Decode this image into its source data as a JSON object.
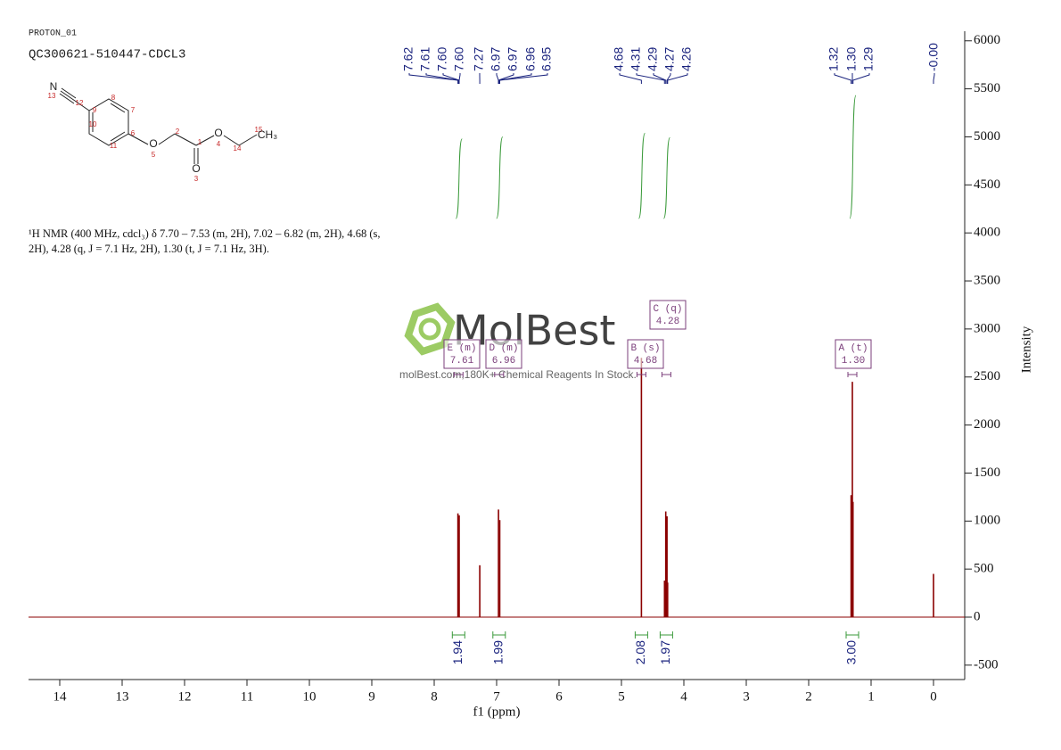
{
  "header": {
    "experiment": "PROTON_01",
    "sample": "QC300621-510447-CDCL3"
  },
  "structure": {
    "atoms": [
      "N",
      "13",
      "12",
      "9",
      "8",
      "7",
      "10",
      "11",
      "6",
      "O",
      "5",
      "2",
      "1",
      "O",
      "3",
      "O",
      "4",
      "14",
      "15",
      "CH₃"
    ]
  },
  "description": "¹H NMR (400 MHz, cdcl₃) δ 7.70 – 7.53 (m, 2H), 7.02 – 6.82 (m, 2H), 4.68 (s, 2H), 4.28 (q, J = 7.1 Hz, 2H), 1.30 (t, J = 7.1 Hz, 3H).",
  "watermark": {
    "brand": "MolBest",
    "tagline": "molBest.com,180K+ Chemical Reagents In Stock."
  },
  "chart_data": {
    "type": "spectrum",
    "x_label": "f1 (ppm)",
    "y_label": "Intensity",
    "xlim": [
      14.5,
      -0.5
    ],
    "xticks": [
      14,
      13,
      12,
      11,
      10,
      9,
      8,
      7,
      6,
      5,
      4,
      3,
      2,
      1,
      0
    ],
    "ylim": [
      -650,
      6100
    ],
    "yticks": [
      -500,
      0,
      500,
      1000,
      1500,
      2000,
      2500,
      3000,
      3500,
      4000,
      4500,
      5000,
      5500,
      6000
    ],
    "color": "#8b0000",
    "x": [
      7.62,
      7.6,
      7.27,
      6.97,
      6.95,
      4.68,
      4.31,
      4.29,
      4.27,
      4.26,
      1.32,
      1.3,
      1.29,
      0.0
    ],
    "values": [
      1080,
      1060,
      540,
      1120,
      1010,
      2700,
      380,
      1100,
      1050,
      360,
      1270,
      2450,
      1200,
      450
    ],
    "peak_labels": [
      {
        "value": 7.62,
        "label": "7.62"
      },
      {
        "value": 7.61,
        "label": "7.61"
      },
      {
        "value": 7.6,
        "label": "7.60"
      },
      {
        "value": 7.6,
        "label": "7.60"
      },
      {
        "value": 7.27,
        "label": "7.27"
      },
      {
        "value": 6.97,
        "label": "6.97"
      },
      {
        "value": 6.97,
        "label": "6.97"
      },
      {
        "value": 6.96,
        "label": "6.96"
      },
      {
        "value": 6.95,
        "label": "6.95"
      },
      {
        "value": 4.68,
        "label": "4.68"
      },
      {
        "value": 4.31,
        "label": "4.31"
      },
      {
        "value": 4.29,
        "label": "4.29"
      },
      {
        "value": 4.27,
        "label": "4.27"
      },
      {
        "value": 4.26,
        "label": "4.26"
      },
      {
        "value": 1.32,
        "label": "1.32"
      },
      {
        "value": 1.3,
        "label": "1.30"
      },
      {
        "value": 1.29,
        "label": "1.29"
      },
      {
        "value": 0,
        "label": "-0.00"
      }
    ],
    "integrals": {
      "color": "#3a9a3a",
      "x": [
        7.61,
        6.96,
        4.68,
        4.28,
        1.3
      ],
      "values": [
        1.94,
        1.99,
        2.08,
        1.97,
        3.0
      ],
      "value_labels": [
        "1.94",
        "1.99",
        "2.08",
        "1.97",
        "3.00"
      ]
    },
    "multiplets": [
      {
        "name": "E (m)",
        "shift": {
          "value": 7.61,
          "label": "7.61"
        }
      },
      {
        "name": "D (m)",
        "shift": {
          "value": 6.96,
          "label": "6.96"
        }
      },
      {
        "name": "B (s)",
        "shift": {
          "value": 4.68,
          "label": "4.68"
        }
      },
      {
        "name": "C (q)",
        "shift": {
          "value": 4.28,
          "label": "4.28"
        }
      },
      {
        "name": "A (t)",
        "shift": {
          "value": 1.3,
          "label": "1.30"
        }
      }
    ]
  }
}
